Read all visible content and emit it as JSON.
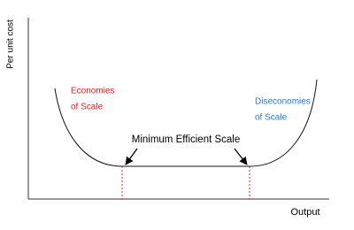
{
  "axes": {
    "y_label": "Per unit cost",
    "x_label": "Output"
  },
  "regions": [
    {
      "lines": [
        "Economies",
        "of Scale"
      ]
    },
    {
      "lines": [
        "Diseconomies",
        "of Scale"
      ]
    }
  ],
  "annotation": "Minimum Efficient Scale"
}
